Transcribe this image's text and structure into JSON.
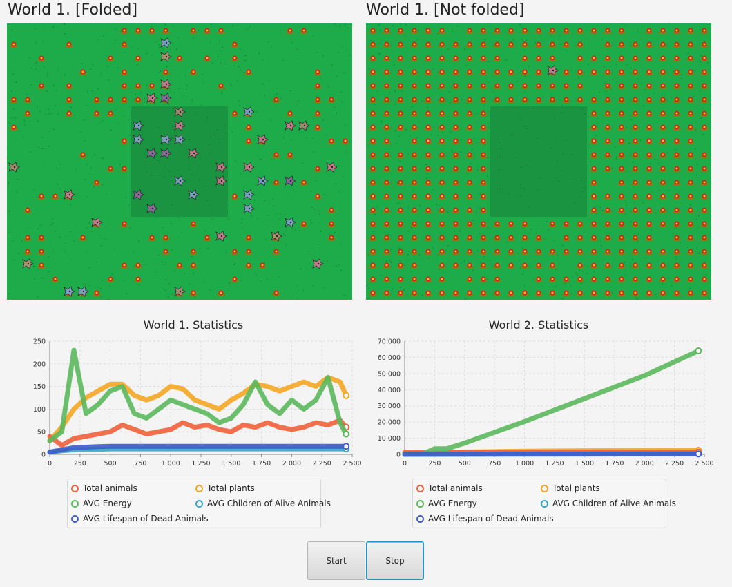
{
  "worlds": [
    {
      "title": "World 1. [Folded]"
    },
    {
      "title": "World 1. [Not folded]"
    }
  ],
  "colors": {
    "grass": "#1eac4a",
    "jungle": "#17823a",
    "plant_red": "#d42a1e",
    "plant_yellow": "#f2d21a",
    "total_animals": "#f0603a",
    "total_plants": "#f5a623",
    "avg_energy": "#5cb85c",
    "avg_children": "#3aa6c8",
    "avg_lifespan": "#3f5cc8"
  },
  "charts": [
    {
      "title": "World 1. Statistics",
      "y_ticks": [
        "250",
        "200",
        "150",
        "100",
        "50",
        "0"
      ],
      "x_ticks": [
        "0",
        "250",
        "500",
        "750",
        "1 000",
        "1 250",
        "1 500",
        "1 750",
        "2 000",
        "2 250",
        "2 500"
      ]
    },
    {
      "title": "World 2. Statistics",
      "y_ticks": [
        "70 000",
        "60 000",
        "50 000",
        "40 000",
        "30 000",
        "20 000",
        "10 000",
        "0"
      ],
      "x_ticks": [
        "0",
        "250",
        "500",
        "750",
        "1 000",
        "1 250",
        "1 500",
        "1 750",
        "2 000",
        "2 250",
        "2 500"
      ]
    }
  ],
  "legend": [
    {
      "label": "Total animals",
      "color_key": "total_animals"
    },
    {
      "label": "Total plants",
      "color_key": "total_plants"
    },
    {
      "label": "AVG Energy",
      "color_key": "avg_energy"
    },
    {
      "label": "AVG Children of Alive Animals",
      "color_key": "avg_children"
    },
    {
      "label": "AVG Lifespan of Dead Animals",
      "color_key": "avg_lifespan"
    }
  ],
  "buttons": {
    "start": "Start",
    "stop": "Stop"
  },
  "chart_data": [
    {
      "type": "line",
      "title": "World 1. Statistics",
      "xlabel": "",
      "ylabel": "",
      "xlim": [
        0,
        2500
      ],
      "ylim": [
        0,
        250
      ],
      "x": [
        0,
        100,
        200,
        300,
        400,
        500,
        600,
        700,
        800,
        900,
        1000,
        1100,
        1200,
        1300,
        1400,
        1500,
        1600,
        1700,
        1800,
        1900,
        2000,
        2100,
        2200,
        2300,
        2400,
        2450
      ],
      "series": [
        {
          "name": "Total animals",
          "values": [
            40,
            20,
            35,
            40,
            45,
            50,
            65,
            55,
            45,
            50,
            55,
            70,
            60,
            65,
            55,
            50,
            65,
            60,
            70,
            60,
            55,
            60,
            70,
            65,
            75,
            60
          ]
        },
        {
          "name": "Total plants",
          "values": [
            30,
            60,
            100,
            125,
            140,
            155,
            155,
            130,
            120,
            130,
            150,
            145,
            120,
            110,
            100,
            120,
            135,
            155,
            150,
            140,
            150,
            160,
            150,
            170,
            160,
            130
          ]
        },
        {
          "name": "AVG Energy",
          "values": [
            30,
            50,
            230,
            90,
            110,
            140,
            150,
            90,
            80,
            100,
            120,
            110,
            100,
            90,
            70,
            80,
            110,
            160,
            110,
            90,
            120,
            100,
            120,
            170,
            70,
            45
          ]
        },
        {
          "name": "AVG Children of Alive Animals",
          "values": [
            5,
            8,
            10,
            11,
            11,
            12,
            12,
            12,
            12,
            12,
            12,
            12,
            12,
            12,
            12,
            12,
            12,
            12,
            12,
            12,
            12,
            12,
            12,
            12,
            12,
            12
          ]
        },
        {
          "name": "AVG Lifespan of Dead Animals",
          "values": [
            5,
            10,
            15,
            16,
            17,
            18,
            18,
            18,
            18,
            18,
            18,
            18,
            18,
            18,
            18,
            18,
            18,
            18,
            18,
            18,
            18,
            18,
            18,
            18,
            18,
            18
          ]
        }
      ]
    },
    {
      "type": "line",
      "title": "World 2. Statistics",
      "xlabel": "",
      "ylabel": "",
      "xlim": [
        0,
        2500
      ],
      "ylim": [
        0,
        70000
      ],
      "x": [
        0,
        150,
        250,
        300,
        350,
        500,
        1000,
        1500,
        2000,
        2450
      ],
      "series": [
        {
          "name": "Total animals",
          "values": [
            1200,
            1200,
            1300,
            1300,
            1300,
            1400,
            1400,
            1500,
            1500,
            1500
          ]
        },
        {
          "name": "Total plants",
          "values": [
            900,
            900,
            900,
            900,
            900,
            1500,
            2000,
            2300,
            2500,
            2600
          ]
        },
        {
          "name": "AVG Energy",
          "values": [
            100,
            200,
            3500,
            3500,
            3500,
            7000,
            20300,
            34500,
            48700,
            64000
          ]
        },
        {
          "name": "AVG Children of Alive Animals",
          "values": [
            5,
            10,
            20,
            30,
            40,
            60,
            120,
            180,
            240,
            300
          ]
        },
        {
          "name": "AVG Lifespan of Dead Animals",
          "values": [
            50,
            80,
            100,
            120,
            130,
            150,
            200,
            250,
            300,
            320
          ]
        }
      ]
    }
  ]
}
